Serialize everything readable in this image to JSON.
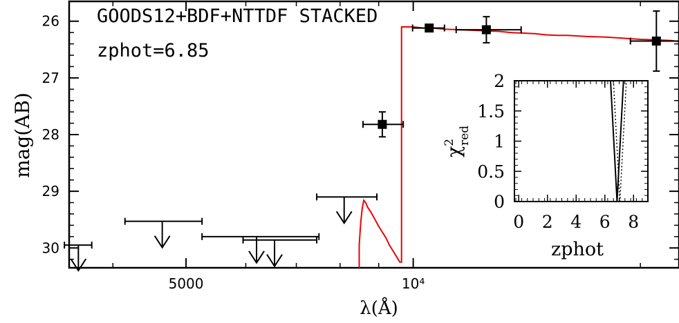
{
  "chart_data": [
    {
      "type": "scatter",
      "title": "GOODS12+BDF+NTTDF STACKED",
      "subtitle": "zphot=6.85",
      "xlabel": "λ(Å)",
      "ylabel": "mag(AB)",
      "x_scale": "log",
      "xlim": [
        3500,
        22500
      ],
      "ylim": [
        30.35,
        25.65
      ],
      "x_ticks": [
        5000,
        10000
      ],
      "x_tick_labels": [
        "5000",
        "10⁴"
      ],
      "y_ticks": [
        26,
        27,
        28,
        29,
        30
      ],
      "y_tick_labels": [
        "26",
        "27",
        "28",
        "29",
        "30"
      ],
      "detections": [
        {
          "x": 9100,
          "xerr": [
            8580,
            9700
          ],
          "y": 27.82,
          "yerr": [
            27.6,
            28.04
          ]
        },
        {
          "x": 10500,
          "xerr": [
            9980,
            11000
          ],
          "y": 26.12,
          "yerr": [
            26.12,
            26.12
          ]
        },
        {
          "x": 12500,
          "xerr": [
            11400,
            13900
          ],
          "y": 26.15,
          "yerr": [
            25.92,
            26.38
          ]
        },
        {
          "x": 21000,
          "xerr": [
            19400,
            22500
          ],
          "y": 26.35,
          "yerr": [
            25.82,
            26.88
          ]
        }
      ],
      "upper_limits": [
        {
          "x": 3600,
          "xerr": [
            3450,
            3750
          ],
          "y": 29.95
        },
        {
          "x": 4650,
          "xerr": [
            4150,
            5250
          ],
          "y": 29.53
        },
        {
          "x": 6200,
          "xerr": [
            5250,
            7500
          ],
          "y": 29.8
        },
        {
          "x": 6550,
          "xerr": [
            5950,
            7450
          ],
          "y": 29.86
        },
        {
          "x": 8100,
          "xerr": [
            7450,
            8950
          ],
          "y": 29.1
        }
      ],
      "model_sed": {
        "x": [
          8480,
          8480,
          8520,
          8560,
          8600,
          8650,
          8700,
          8800,
          8900,
          9000,
          9100,
          9200,
          9300,
          9400,
          9500,
          9550,
          9600,
          9650,
          9650,
          9800,
          10000,
          10300,
          10600,
          11000,
          11500,
          12000,
          12500,
          13000,
          13500,
          14000,
          14500,
          15000,
          15500,
          16000,
          17000,
          18000,
          19000,
          20000,
          21000,
          22000,
          22500
        ],
        "y": [
          30.35,
          29.95,
          29.55,
          29.3,
          29.16,
          29.2,
          29.28,
          29.38,
          29.5,
          29.62,
          29.72,
          29.82,
          29.95,
          30.05,
          30.15,
          30.2,
          30.25,
          30.25,
          26.1,
          26.1,
          26.1,
          26.12,
          26.12,
          26.14,
          26.15,
          26.16,
          26.17,
          26.18,
          26.2,
          26.21,
          26.22,
          26.24,
          26.25,
          26.25,
          26.27,
          26.28,
          26.3,
          26.32,
          26.33,
          26.34,
          26.36
        ],
        "color": "#ee0000"
      },
      "marker_color": "#000000"
    },
    {
      "type": "line",
      "xlabel": "zphot",
      "ylabel": "χ²red",
      "xlim": [
        -0.3,
        9
      ],
      "ylim": [
        0,
        2
      ],
      "x_ticks": [
        0,
        2,
        4,
        6,
        8
      ],
      "y_ticks": [
        0,
        0.5,
        1,
        1.5,
        2
      ],
      "y_tick_labels": [
        "0",
        "0.5",
        "1",
        "1.5",
        "2"
      ],
      "series": [
        {
          "style": "solid",
          "x": [
            6.4,
            6.85,
            7.3
          ],
          "y": [
            2.0,
            0.0,
            2.0
          ]
        },
        {
          "style": "dotted",
          "x": [
            6.6,
            7.05,
            7.5
          ],
          "y": [
            2.0,
            0.0,
            2.0
          ]
        }
      ]
    }
  ]
}
